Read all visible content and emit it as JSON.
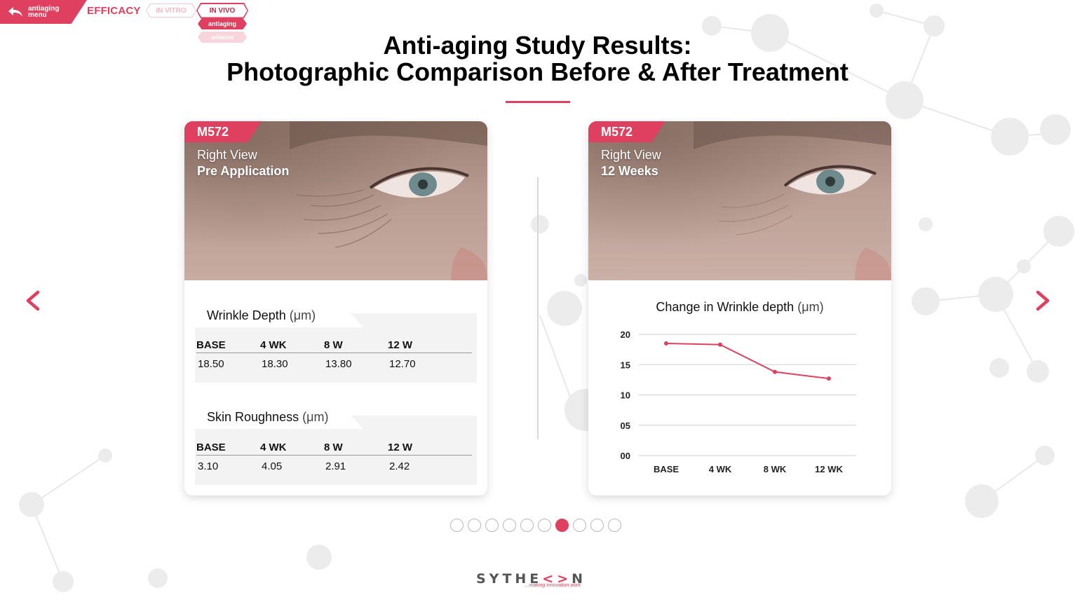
{
  "nav": {
    "back_label_line1": "antiaging",
    "back_label_line2": "menu",
    "section": "EFFICACY",
    "tabs": [
      {
        "label": "IN VITRO",
        "active": false
      },
      {
        "label": "IN VIVO",
        "active": true
      }
    ],
    "subtabs": [
      {
        "label": "antiaging",
        "active": true
      },
      {
        "label": "antiacne",
        "active": false
      }
    ]
  },
  "heading": {
    "line1": "Anti-aging Study Results:",
    "line2": "Photographic Comparison Before & After Treatment"
  },
  "left_card": {
    "badge": "M572",
    "view": "Right View",
    "stage": "Pre Application",
    "tables": [
      {
        "title": "Wrinkle Depth",
        "unit": "(μm)",
        "headers": [
          "BASE",
          "4 WK",
          "8 W",
          "12 W"
        ],
        "values": [
          "18.50",
          "18.30",
          "13.80",
          "12.70"
        ]
      },
      {
        "title": "Skin Roughness",
        "unit": "(μm)",
        "headers": [
          "BASE",
          "4 WK",
          "8 W",
          "12 W"
        ],
        "values": [
          "3.10",
          "4.05",
          "2.91",
          "2.42"
        ]
      }
    ]
  },
  "right_card": {
    "badge": "M572",
    "view": "Right View",
    "stage": "12 Weeks"
  },
  "chart_data": {
    "type": "line",
    "title": "Change in Wrinkle depth",
    "title_unit": "(μm)",
    "categories": [
      "BASE",
      "4 WK",
      "8 WK",
      "12 WK"
    ],
    "values": [
      18.5,
      18.3,
      13.8,
      12.7
    ],
    "ylim": [
      0,
      20
    ],
    "yticks": [
      "00",
      "05",
      "10",
      "15",
      "20"
    ],
    "ytick_values": [
      0,
      5,
      10,
      15,
      20
    ],
    "grid": true,
    "color": "#e0405f"
  },
  "pagination": {
    "count": 10,
    "active_index": 6
  },
  "footer": {
    "logo_text_left": "SYTHE",
    "logo_text_mark": "<>",
    "logo_text_right": "N",
    "tagline": "...making innovation work"
  },
  "colors": {
    "accent": "#e0405f",
    "accent_light": "#f8d4dc"
  },
  "icons": {
    "back": "back-arrow-icon",
    "prev": "chevron-left-icon",
    "next": "chevron-right-icon"
  }
}
